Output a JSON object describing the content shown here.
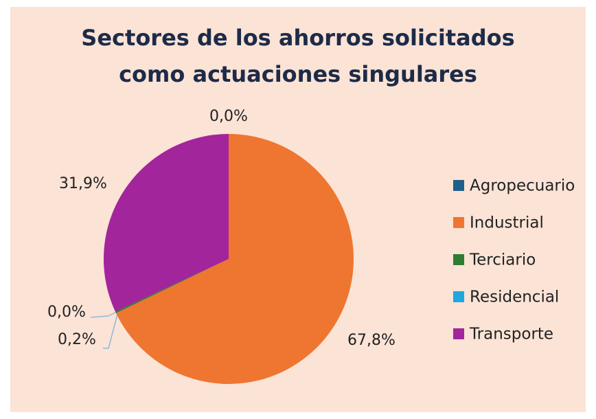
{
  "chart_data": {
    "type": "pie",
    "title": "Sectores de los ahorros solicitados como actuaciones singulares",
    "title_lines": [
      "Sectores de los ahorros solicitados",
      "como actuaciones singulares"
    ],
    "categories": [
      "Agropecuario",
      "Industrial",
      "Terciario",
      "Residencial",
      "Transporte"
    ],
    "values": [
      0.0,
      67.8,
      0.2,
      0.0,
      31.9
    ],
    "value_labels": [
      "0,0%",
      "67,8%",
      "0,2%",
      "0,0%",
      "31,9%"
    ],
    "colors": [
      "#1f5f8b",
      "#ef7630",
      "#2e7d32",
      "#1ea7e0",
      "#a2259c"
    ],
    "legend": "right"
  }
}
